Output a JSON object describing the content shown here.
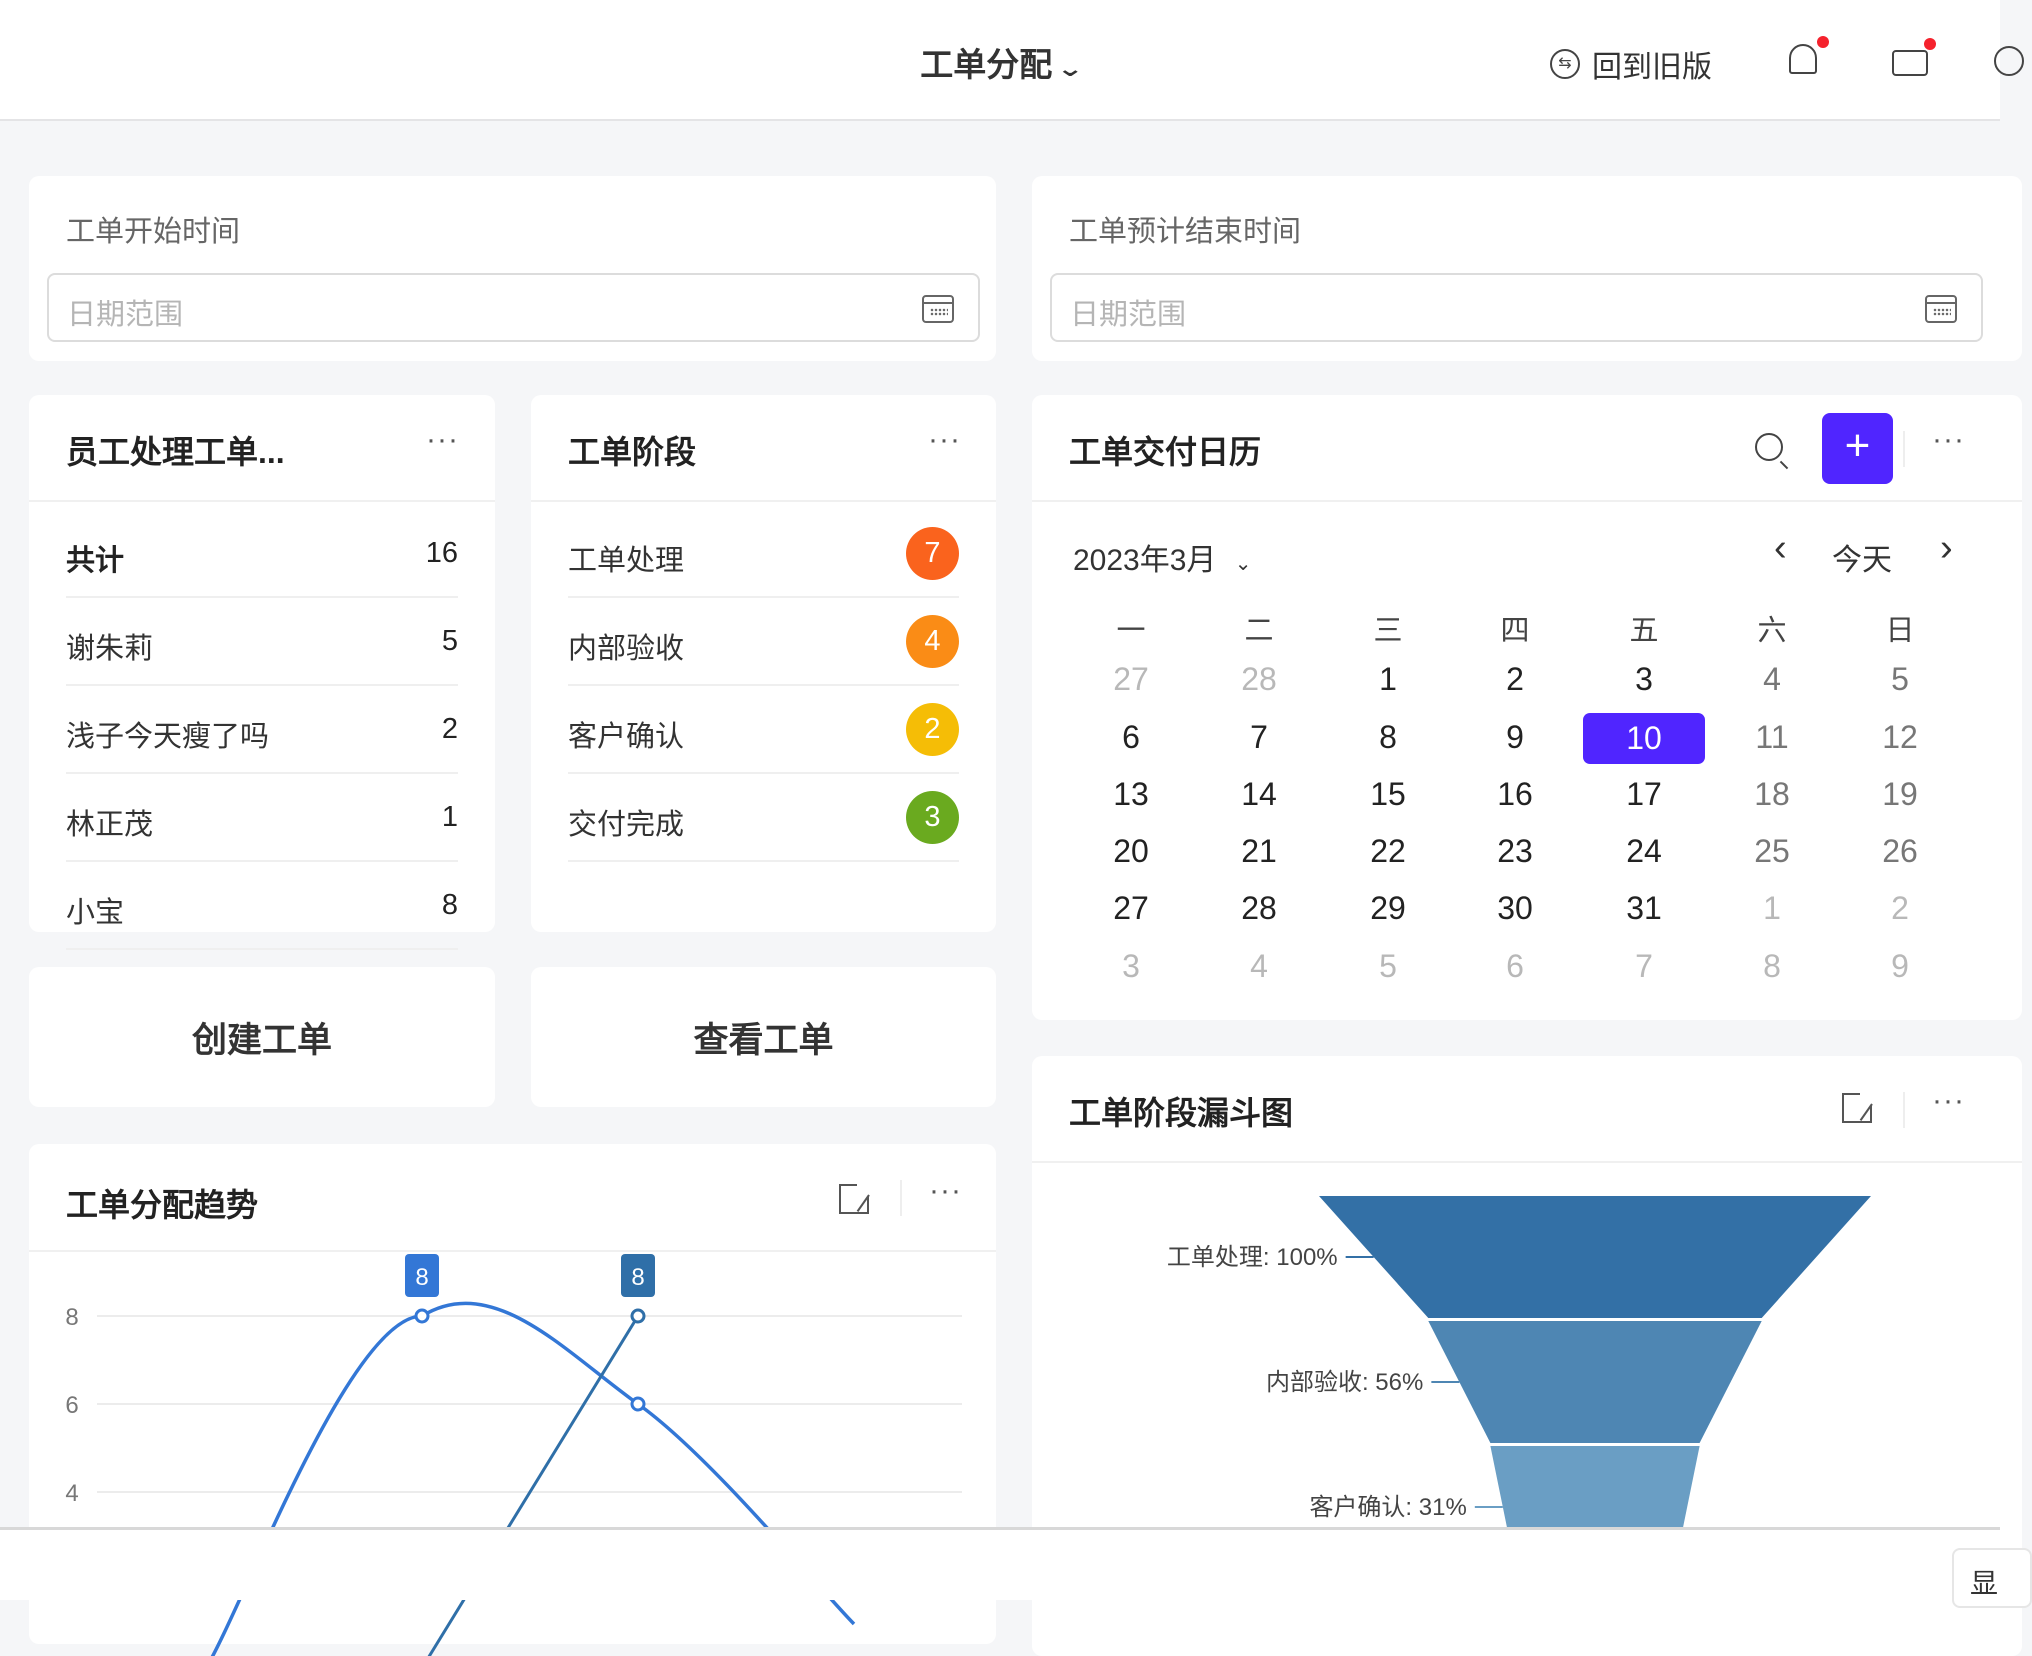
{
  "header": {
    "title": "工单分配",
    "back_old": "回到旧版",
    "icons": [
      "swap-circle-icon",
      "bell-icon",
      "briefcase-icon"
    ],
    "notify_color": "#f5222d"
  },
  "filters": [
    {
      "label": "工单开始时间",
      "placeholder": "日期范围"
    },
    {
      "label": "工单预计结束时间",
      "placeholder": "日期范围"
    }
  ],
  "staff": {
    "title": "员工处理工单...",
    "more": "···",
    "total_label": "共计",
    "total": "16",
    "rows": [
      {
        "name": "谢朱莉",
        "count": "5"
      },
      {
        "name": "浅子今天瘦了吗",
        "count": "2"
      },
      {
        "name": "林正茂",
        "count": "1"
      },
      {
        "name": "小宝",
        "count": "8"
      }
    ]
  },
  "stages": {
    "title": "工单阶段",
    "more": "···",
    "rows": [
      {
        "name": "工单处理",
        "count": "7",
        "color": "#fa631d"
      },
      {
        "name": "内部验收",
        "count": "4",
        "color": "#fa8c16"
      },
      {
        "name": "客户确认",
        "count": "2",
        "color": "#f5bd06"
      },
      {
        "name": "交付完成",
        "count": "3",
        "color": "#6aaa1f"
      }
    ]
  },
  "actions": {
    "create": "创建工单",
    "view": "查看工单"
  },
  "calendar": {
    "title": "工单交付日历",
    "more": "···",
    "month": "2023年3月",
    "today": "今天",
    "prev": "‹",
    "next": "›",
    "accent": "#5025ff",
    "weekdays": [
      "一",
      "二",
      "三",
      "四",
      "五",
      "六",
      "日"
    ],
    "weeks": [
      [
        "27",
        "28",
        "1",
        "2",
        "3",
        "4",
        "5"
      ],
      [
        "6",
        "7",
        "8",
        "9",
        "10",
        "11",
        "12"
      ],
      [
        "13",
        "14",
        "15",
        "16",
        "17",
        "18",
        "19"
      ],
      [
        "20",
        "21",
        "22",
        "23",
        "24",
        "25",
        "26"
      ],
      [
        "27",
        "28",
        "29",
        "30",
        "31",
        "1",
        "2"
      ],
      [
        "3",
        "4",
        "5",
        "6",
        "7",
        "8",
        "9"
      ]
    ],
    "selected": "10"
  },
  "trend": {
    "title": "工单分配趋势",
    "more": "···"
  },
  "funnel_card": {
    "title": "工单阶段漏斗图",
    "more": "···"
  },
  "bottom": {
    "button_partial": "显"
  },
  "chart_data": [
    {
      "type": "line",
      "smooth": true,
      "yticks": [
        "4",
        "6",
        "8"
      ],
      "grid": true,
      "series": [
        {
          "values": [
            0,
            8,
            6,
            1
          ],
          "color": "#3377d6",
          "labels": [
            null,
            "8",
            null,
            null
          ]
        },
        {
          "values": [
            null,
            0,
            8,
            null
          ],
          "color": "#2f6fa8",
          "labels": [
            null,
            null,
            "8",
            null
          ]
        }
      ]
    },
    {
      "type": "funnel",
      "categories": [
        "工单处理",
        "内部验收",
        "客户确认"
      ],
      "values": [
        100,
        56,
        31
      ],
      "labels": [
        "工单处理: 100%",
        "内部验收: 56%",
        "客户确认: 31%"
      ],
      "colors": [
        "#3370a6",
        "#4e86b3",
        "#6a9ec4"
      ]
    }
  ]
}
